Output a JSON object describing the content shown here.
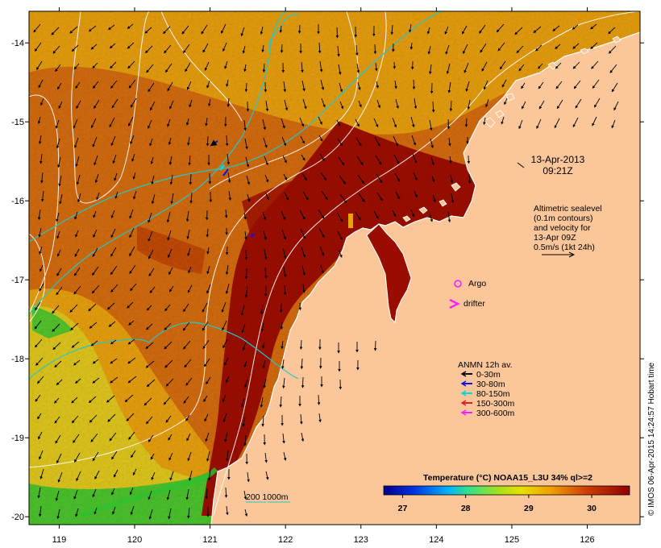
{
  "axes": {
    "lon_ticks": [
      "119",
      "120",
      "121",
      "122",
      "123",
      "124",
      "125",
      "126"
    ],
    "lat_ticks": [
      "-14",
      "-15",
      "-16",
      "-17",
      "-18",
      "-19",
      "-20"
    ],
    "lon_range": [
      118.6,
      126.7
    ],
    "lat_range": [
      -20.1,
      -13.6
    ]
  },
  "timestamp": {
    "date": "13-Apr-2013",
    "time": "09:21Z"
  },
  "altimetry_note": {
    "lines": [
      "Altimetric sealevel",
      "(0.1m contours)",
      "and velocity for",
      "13-Apr 09Z",
      "0.5m/s (1kt 24h)"
    ]
  },
  "markers": {
    "argo": "Argo",
    "drifter": "drifter"
  },
  "anmn_legend": {
    "title": "ANMN 12h av.",
    "items": [
      {
        "label": "0-30m",
        "color": "#000000"
      },
      {
        "label": "30-80m",
        "color": "#1010e0"
      },
      {
        "label": "80-150m",
        "color": "#10d0d0"
      },
      {
        "label": "150-300m",
        "color": "#e02020"
      },
      {
        "label": "300-600m",
        "color": "#ff20ff"
      }
    ]
  },
  "depth_legend": {
    "label": "200  1000m"
  },
  "colorbar": {
    "title": "Temperature (°C) NOAA15_L3U 34% ql>=2",
    "ticks": [
      "27",
      "28",
      "29",
      "30"
    ],
    "range": [
      26.7,
      30.6
    ]
  },
  "credit": "© IMOS 06-Apr-2015 14:24:57 Hobart time",
  "colors": {
    "land": "#fbc79a",
    "sst_hot": "#9a0c00",
    "sst_warm": "#d06a0c",
    "sst_mid": "#e6a30e",
    "sst_cool": "#d8d020",
    "sst_cold": "#30c030",
    "coastline": "#ffffff",
    "isobath": "#22c8c8"
  }
}
